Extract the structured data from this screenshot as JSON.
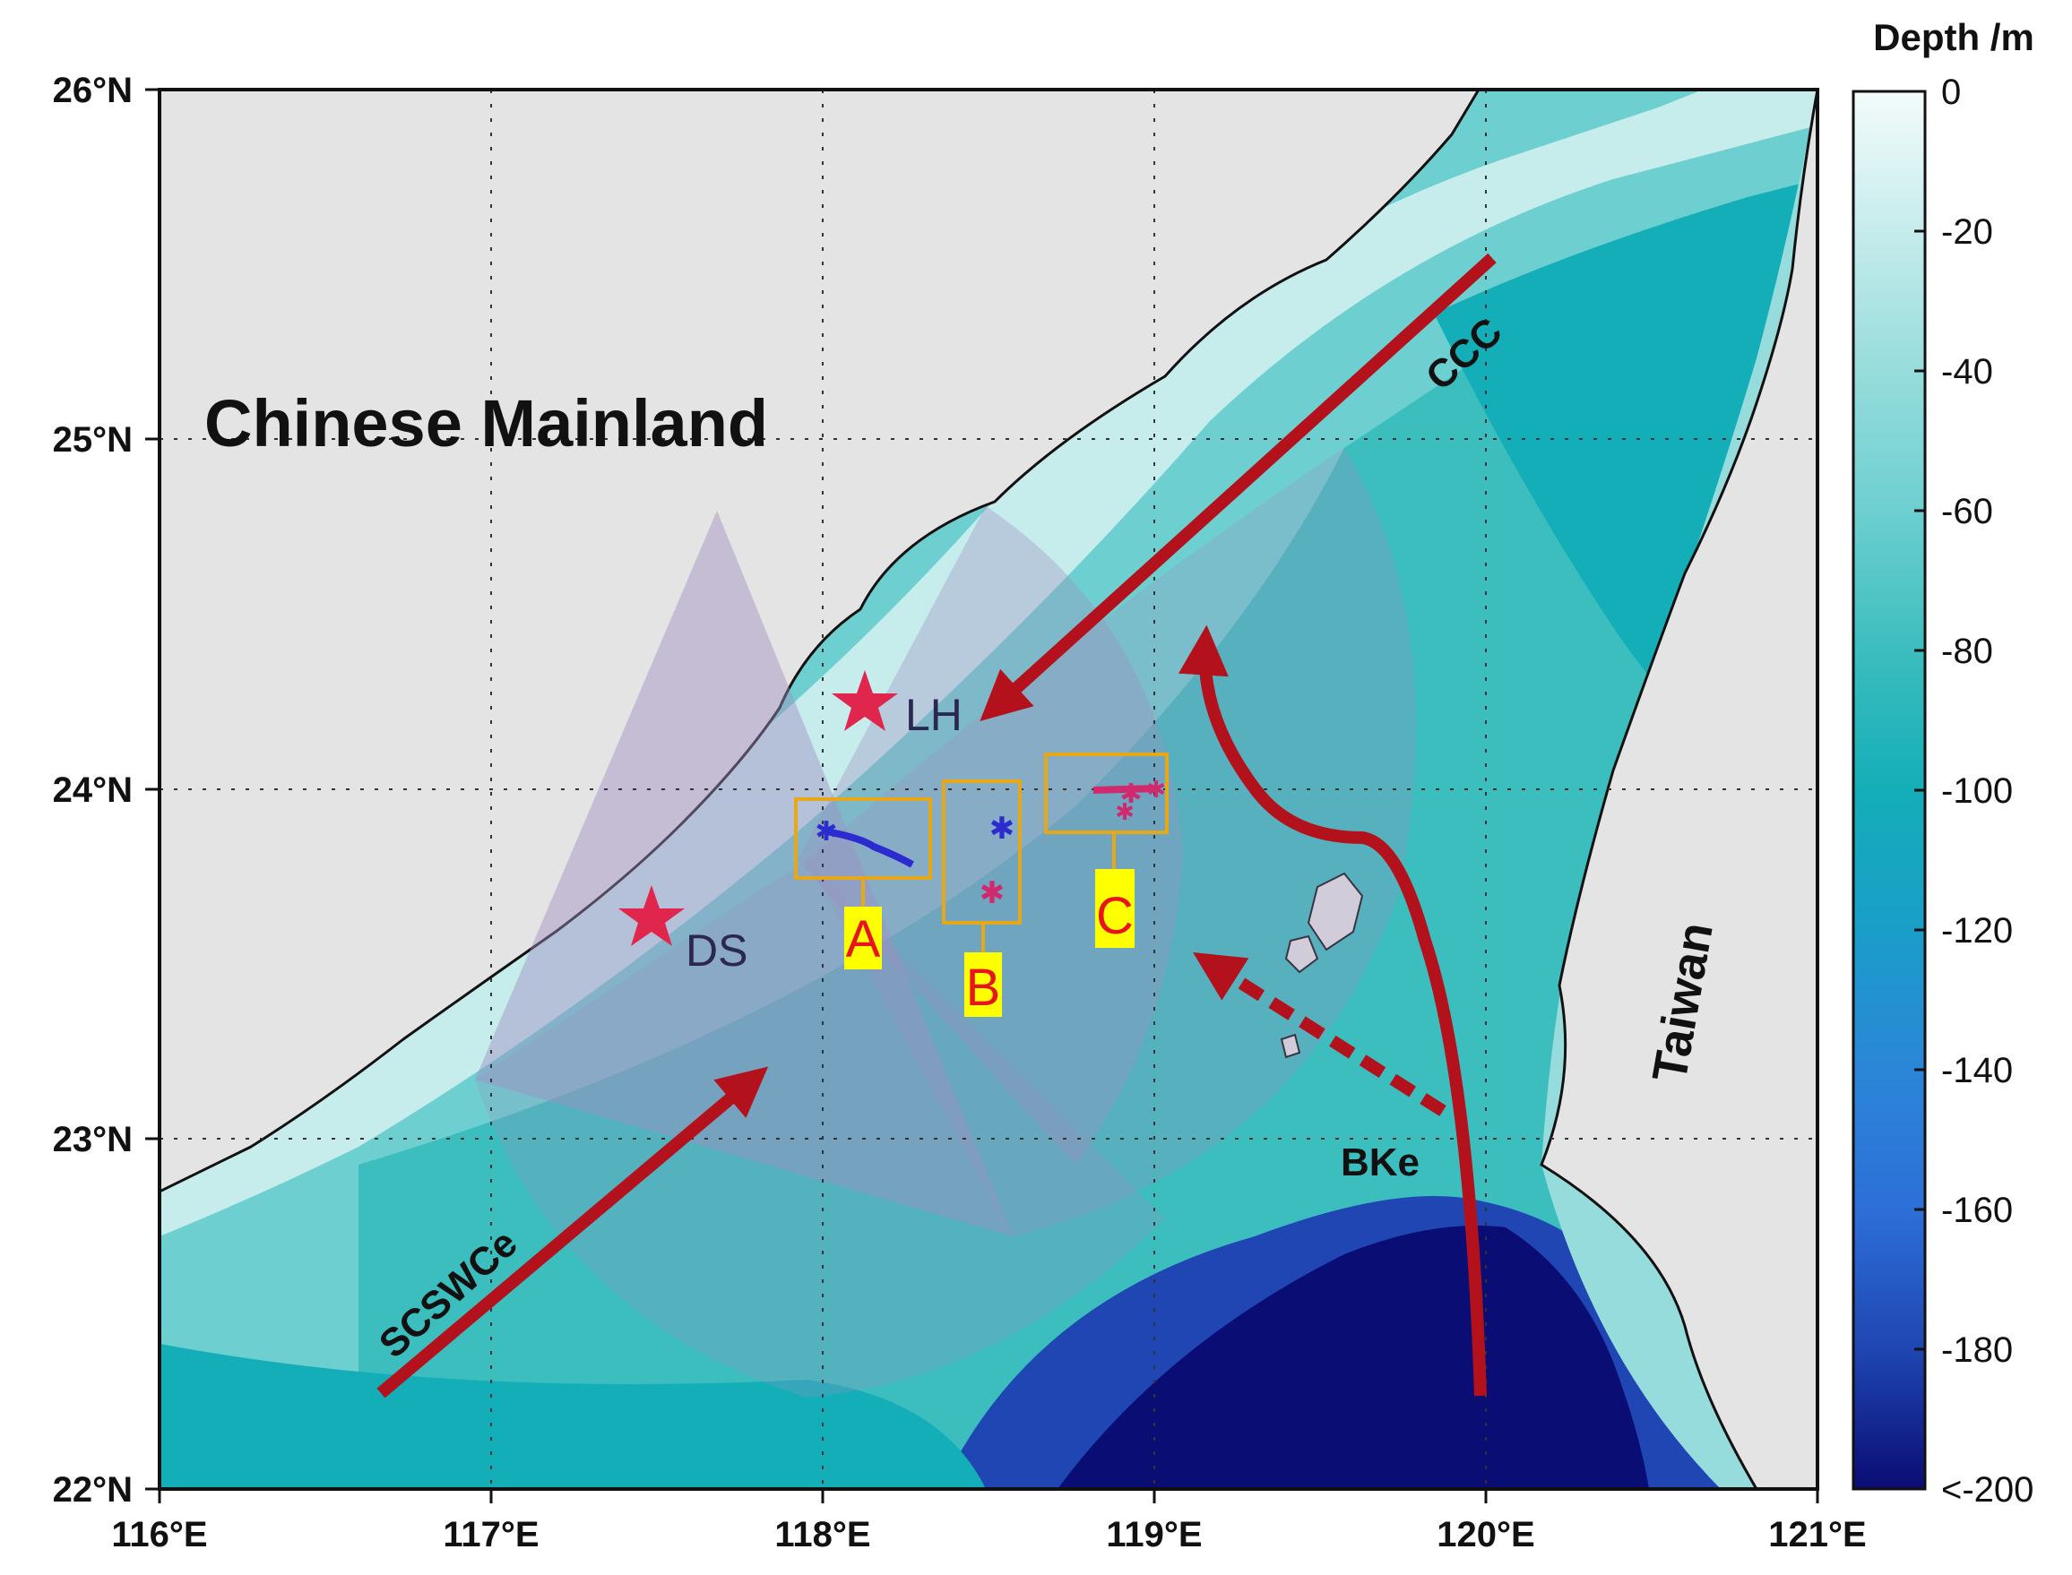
{
  "map": {
    "lon_range": [
      "116°E",
      "121°E"
    ],
    "lat_range": [
      "22°N",
      "26°N"
    ],
    "x_ticks": [
      "116°E",
      "117°E",
      "118°E",
      "119°E",
      "120°E",
      "121°E"
    ],
    "y_ticks": [
      "26°N",
      "25°N",
      "24°N",
      "23°N",
      "22°N"
    ],
    "grid": "dotted",
    "land_color": "#e4e4e4",
    "coastline_color": "#111111"
  },
  "colorbar": {
    "title": "Depth /m",
    "tick_labels": [
      "0",
      "-20",
      "-40",
      "-60",
      "-80",
      "-100",
      "-120",
      "-140",
      "-160",
      "-180",
      "<-200"
    ],
    "colors": [
      "#f4fbfb",
      "#c6ecec",
      "#97dcdc",
      "#6dcfd0",
      "#3cbdbe",
      "#14aeb8",
      "#1a9ec9",
      "#2b86d8",
      "#2d6fd8",
      "#1f46b2",
      "#0a0d74"
    ]
  },
  "labels": {
    "mainland": "Chinese  Mainland",
    "taiwan": "Taiwan",
    "currents": {
      "ccc": "CCC",
      "scswce": "SCSWCe",
      "bke": "BKe"
    },
    "sites": {
      "lh": "LH",
      "ds": "DS"
    },
    "boxes": {
      "a": "A",
      "b": "B",
      "c": "C"
    }
  },
  "colors": {
    "current_arrow": "#b3121c",
    "site_star": "#e0264c",
    "box_outline": "#e6a817",
    "box_label_bg": "#ffff00",
    "box_label_text": "#e8131b",
    "track_blue": "#2b2bd0",
    "track_magenta": "#d1296e",
    "fan_overlay": "#9d8fc0"
  }
}
